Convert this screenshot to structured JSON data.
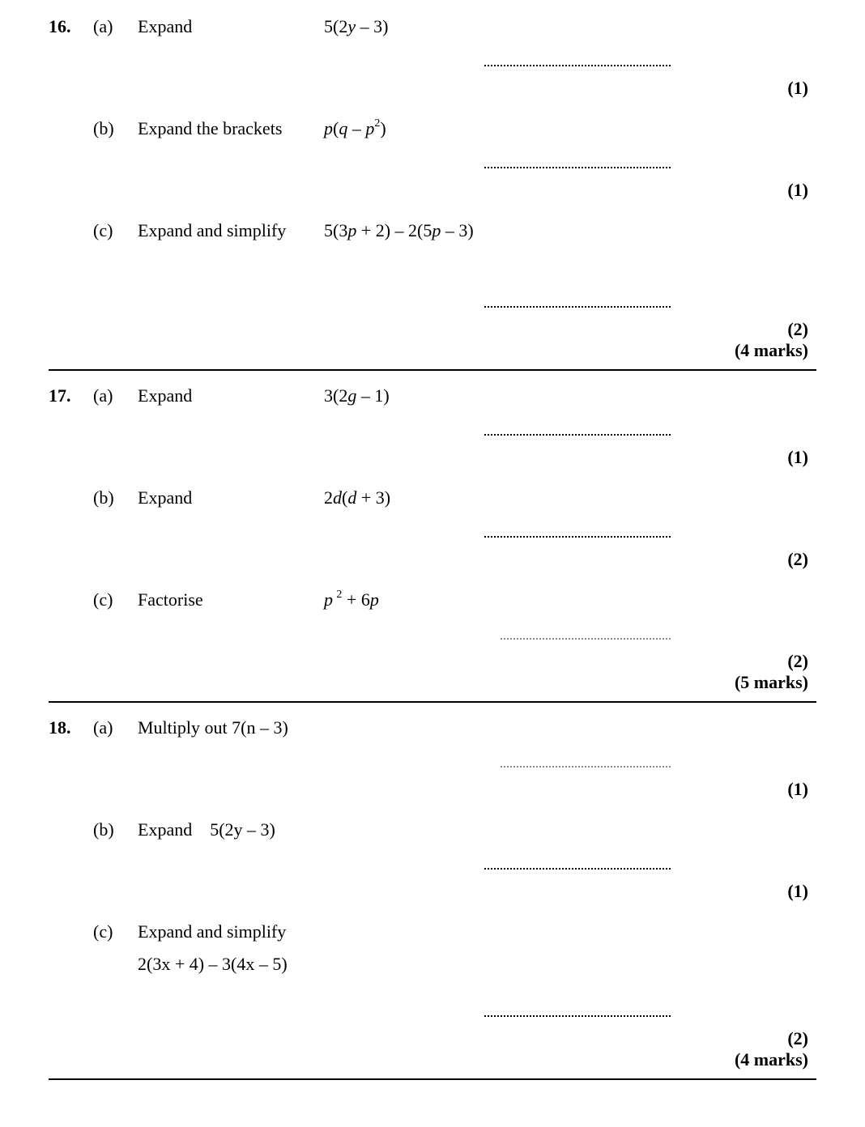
{
  "colors": {
    "text": "#000000",
    "background": "#ffffff",
    "dots_light": "#888888"
  },
  "questions": [
    {
      "number": "16.",
      "parts": [
        {
          "label": "(a)",
          "instruction": "Expand",
          "expression_html": "5(2<span class='it'>y</span> – 3)",
          "points": "(1)",
          "dots_style": "dark"
        },
        {
          "label": "(b)",
          "instruction": "Expand the brackets",
          "expression_html": "<span class='it'>p</span>(<span class='it'>q</span> – <span class='it'>p</span><sup>2</sup>)",
          "points": "(1)",
          "dots_style": "dark"
        },
        {
          "label": "(c)",
          "instruction": "Expand and simplify",
          "expression_html": "5(3<span class='it'>p</span> + 2) – 2(5<span class='it'>p</span> – 3)",
          "points": "(2)",
          "dots_style": "dark",
          "gap_before_answer": "lg"
        }
      ],
      "total": "(4 marks)"
    },
    {
      "number": "17.",
      "parts": [
        {
          "label": "(a)",
          "instruction": "Expand",
          "expression_html": "3(2<span class='it'>g</span> – 1)",
          "points": "(1)",
          "dots_style": "dark"
        },
        {
          "label": "(b)",
          "instruction": "Expand",
          "expression_html": "2<span class='it'>d</span>(<span class='it'>d</span> + 3)",
          "points": "(2)",
          "dots_style": "dark"
        },
        {
          "label": "(c)",
          "instruction": "Factorise",
          "expression_html": "<span class='it'>p</span>&thinsp;<sup>2</sup> + 6<span class='it'>p</span>",
          "points": "(2)",
          "dots_style": "light"
        }
      ],
      "total": "(5 marks)"
    },
    {
      "number": "18.",
      "parts": [
        {
          "label": "(a)",
          "instruction_inline": "Multiply out 7(<span class='it'>n</span> – 3)",
          "points": "(1)",
          "dots_style": "light"
        },
        {
          "label": "(b)",
          "instruction_inline": "Expand&nbsp;&nbsp;&nbsp;&nbsp;5(2<span class='it'>y</span> – 3)",
          "points": "(1)",
          "dots_style": "dark"
        },
        {
          "label": "(c)",
          "instruction_inline": "Expand and simplify",
          "second_line_html": "2(3<span class='it'>x</span> + 4) – 3(4<span class='it'>x</span> – 5)",
          "points": "(2)",
          "dots_style": "dark",
          "gap_before_answer": "md"
        }
      ],
      "total": "(4 marks)"
    }
  ]
}
